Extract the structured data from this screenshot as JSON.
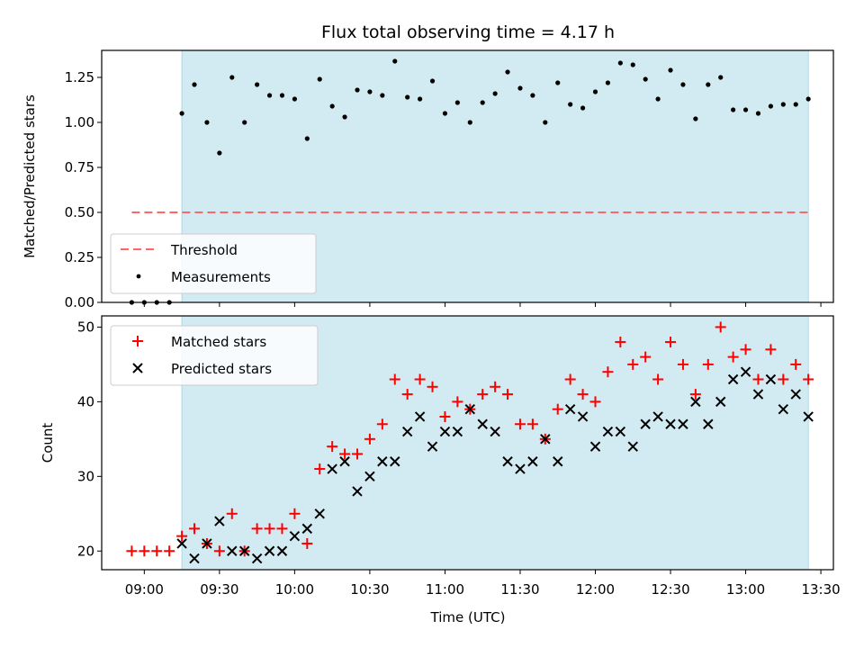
{
  "chart_data": {
    "type": "scatter",
    "title": "Flux total observing time = 4.17 h",
    "xlabel": "Time (UTC)",
    "x_ticks": [
      "09:00",
      "09:30",
      "10:00",
      "10:30",
      "11:00",
      "11:30",
      "12:00",
      "12:30",
      "13:00",
      "13:30"
    ],
    "x_range": [
      "08:43",
      "13:35"
    ],
    "observing_window": [
      "09:15",
      "13:25"
    ],
    "colors": {
      "window": "#add8e6",
      "threshold": "#ff6666",
      "matched": "#ff0000",
      "predicted": "#000000",
      "measurement": "#000000"
    },
    "top": {
      "ylabel": "Matched/Predicted stars",
      "ylim": [
        0,
        1.4
      ],
      "y_ticks": [
        "0.00",
        "0.25",
        "0.50",
        "0.75",
        "1.00",
        "1.25"
      ],
      "threshold": {
        "name": "Threshold",
        "value": 0.5,
        "x": [
          "08:55",
          "13:25"
        ]
      },
      "measurements": {
        "name": "Measurements",
        "x": [
          "08:55",
          "09:00",
          "09:05",
          "09:10",
          "09:15",
          "09:20",
          "09:25",
          "09:30",
          "09:35",
          "09:40",
          "09:45",
          "09:50",
          "09:55",
          "10:00",
          "10:05",
          "10:10",
          "10:15",
          "10:20",
          "10:25",
          "10:30",
          "10:35",
          "10:40",
          "10:45",
          "10:50",
          "10:55",
          "11:00",
          "11:05",
          "11:10",
          "11:15",
          "11:20",
          "11:25",
          "11:30",
          "11:35",
          "11:40",
          "11:45",
          "11:50",
          "11:55",
          "12:00",
          "12:05",
          "12:10",
          "12:15",
          "12:20",
          "12:25",
          "12:30",
          "12:35",
          "12:40",
          "12:45",
          "12:50",
          "12:55",
          "13:00",
          "13:05",
          "13:10",
          "13:15",
          "13:20",
          "13:25"
        ],
        "y": [
          0.0,
          0.0,
          0.0,
          0.0,
          1.05,
          1.21,
          1.0,
          0.83,
          1.25,
          1.0,
          1.21,
          1.15,
          1.15,
          1.13,
          0.91,
          1.24,
          1.09,
          1.03,
          1.18,
          1.17,
          1.15,
          1.34,
          1.14,
          1.13,
          1.23,
          1.05,
          1.11,
          1.0,
          1.11,
          1.16,
          1.28,
          1.19,
          1.15,
          1.0,
          1.22,
          1.1,
          1.08,
          1.17,
          1.22,
          1.33,
          1.32,
          1.24,
          1.13,
          1.29,
          1.21,
          1.02,
          1.21,
          1.25,
          1.07,
          1.07,
          1.05,
          1.09,
          1.1,
          1.1,
          1.13
        ]
      },
      "legend": {
        "placement": "lower left",
        "entries": [
          "Threshold",
          "Measurements"
        ]
      }
    },
    "bottom": {
      "ylabel": "Count",
      "ylim": [
        17.5,
        51.5
      ],
      "y_ticks": [
        "20",
        "30",
        "40",
        "50"
      ],
      "matched": {
        "name": "Matched stars",
        "x": [
          "08:55",
          "09:00",
          "09:05",
          "09:10",
          "09:15",
          "09:20",
          "09:25",
          "09:30",
          "09:35",
          "09:40",
          "09:45",
          "09:50",
          "09:55",
          "10:00",
          "10:05",
          "10:10",
          "10:15",
          "10:20",
          "10:25",
          "10:30",
          "10:35",
          "10:40",
          "10:45",
          "10:50",
          "10:55",
          "11:00",
          "11:05",
          "11:10",
          "11:15",
          "11:20",
          "11:25",
          "11:30",
          "11:35",
          "11:40",
          "11:45",
          "11:50",
          "11:55",
          "12:00",
          "12:05",
          "12:10",
          "12:15",
          "12:20",
          "12:25",
          "12:30",
          "12:35",
          "12:40",
          "12:45",
          "12:50",
          "12:55",
          "13:00",
          "13:05",
          "13:10",
          "13:15",
          "13:20",
          "13:25"
        ],
        "y": [
          20,
          20,
          20,
          20,
          22,
          23,
          21,
          20,
          25,
          20,
          23,
          23,
          23,
          25,
          21,
          31,
          34,
          33,
          33,
          35,
          37,
          43,
          41,
          43,
          42,
          38,
          40,
          39,
          41,
          42,
          41,
          37,
          37,
          35,
          39,
          43,
          41,
          40,
          44,
          48,
          45,
          46,
          43,
          48,
          45,
          41,
          45,
          50,
          46,
          47,
          43,
          47,
          43,
          45,
          43
        ]
      },
      "predicted": {
        "name": "Predicted stars",
        "x": [
          "09:15",
          "09:20",
          "09:25",
          "09:30",
          "09:35",
          "09:40",
          "09:45",
          "09:50",
          "09:55",
          "10:00",
          "10:05",
          "10:10",
          "10:15",
          "10:20",
          "10:25",
          "10:30",
          "10:35",
          "10:40",
          "10:45",
          "10:50",
          "10:55",
          "11:00",
          "11:05",
          "11:10",
          "11:15",
          "11:20",
          "11:25",
          "11:30",
          "11:35",
          "11:40",
          "11:45",
          "11:50",
          "11:55",
          "12:00",
          "12:05",
          "12:10",
          "12:15",
          "12:20",
          "12:25",
          "12:30",
          "12:35",
          "12:40",
          "12:45",
          "12:50",
          "12:55",
          "13:00",
          "13:05",
          "13:10",
          "13:15",
          "13:20",
          "13:25"
        ],
        "y": [
          21,
          19,
          21,
          24,
          20,
          20,
          19,
          20,
          20,
          22,
          23,
          25,
          31,
          32,
          28,
          30,
          32,
          32,
          36,
          38,
          34,
          36,
          36,
          39,
          37,
          36,
          32,
          31,
          32,
          35,
          32,
          39,
          38,
          34,
          36,
          36,
          34,
          37,
          38,
          37,
          37,
          40,
          37,
          40,
          43,
          44,
          41,
          43,
          39,
          41,
          38
        ]
      },
      "legend": {
        "placement": "upper left",
        "entries": [
          "Matched stars",
          "Predicted stars"
        ]
      }
    }
  }
}
